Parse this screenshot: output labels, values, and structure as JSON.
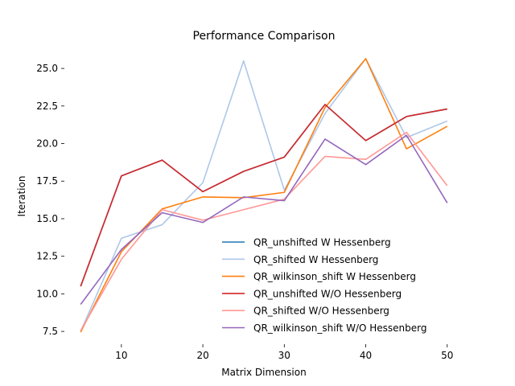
{
  "chart_data": {
    "type": "line",
    "title": "Performance Comparison",
    "xlabel": "Matrix Dimension",
    "ylabel": "Iteration",
    "xlim": [
      3.0,
      52.0
    ],
    "ylim": [
      6.65,
      26.45
    ],
    "xticks": [
      10,
      20,
      30,
      40,
      50
    ],
    "yticks": [
      7.5,
      10.0,
      12.5,
      15.0,
      17.5,
      20.0,
      22.5,
      25.0
    ],
    "grid": false,
    "legend_position": "lower right",
    "x": [
      5,
      10,
      15,
      20,
      25,
      30,
      35,
      40,
      45,
      50
    ],
    "series": [
      {
        "name": "QR_unshifted W Hessenberg",
        "color": "#1f77b4",
        "values": [
          10.5,
          17.85,
          18.9,
          16.8,
          18.15,
          19.1,
          22.6,
          20.2,
          21.8,
          22.3
        ]
      },
      {
        "name": "QR_shifted W Hessenberg",
        "color": "#aec7e8",
        "values": [
          7.5,
          13.7,
          14.6,
          17.4,
          25.5,
          16.9,
          22.0,
          25.65,
          20.4,
          21.5
        ]
      },
      {
        "name": "QR_wilkinson_shift W Hessenberg",
        "color": "#ff7f0e",
        "values": [
          7.45,
          12.8,
          15.65,
          16.45,
          16.4,
          16.75,
          22.4,
          25.65,
          19.65,
          21.15
        ]
      },
      {
        "name": "QR_unshifted W/O Hessenberg",
        "color": "#d62728",
        "values": [
          10.5,
          17.85,
          18.9,
          16.8,
          18.15,
          19.1,
          22.6,
          20.2,
          21.8,
          22.3
        ]
      },
      {
        "name": "QR_shifted W/O Hessenberg",
        "color": "#ff9896",
        "values": [
          7.55,
          12.3,
          15.6,
          14.9,
          15.6,
          16.3,
          19.15,
          18.95,
          20.75,
          17.2
        ]
      },
      {
        "name": "QR_wilkinson_shift W/O Hessenberg",
        "color": "#9467bd",
        "values": [
          9.3,
          12.95,
          15.4,
          14.75,
          16.45,
          16.2,
          20.3,
          18.6,
          20.55,
          16.05
        ]
      }
    ]
  }
}
